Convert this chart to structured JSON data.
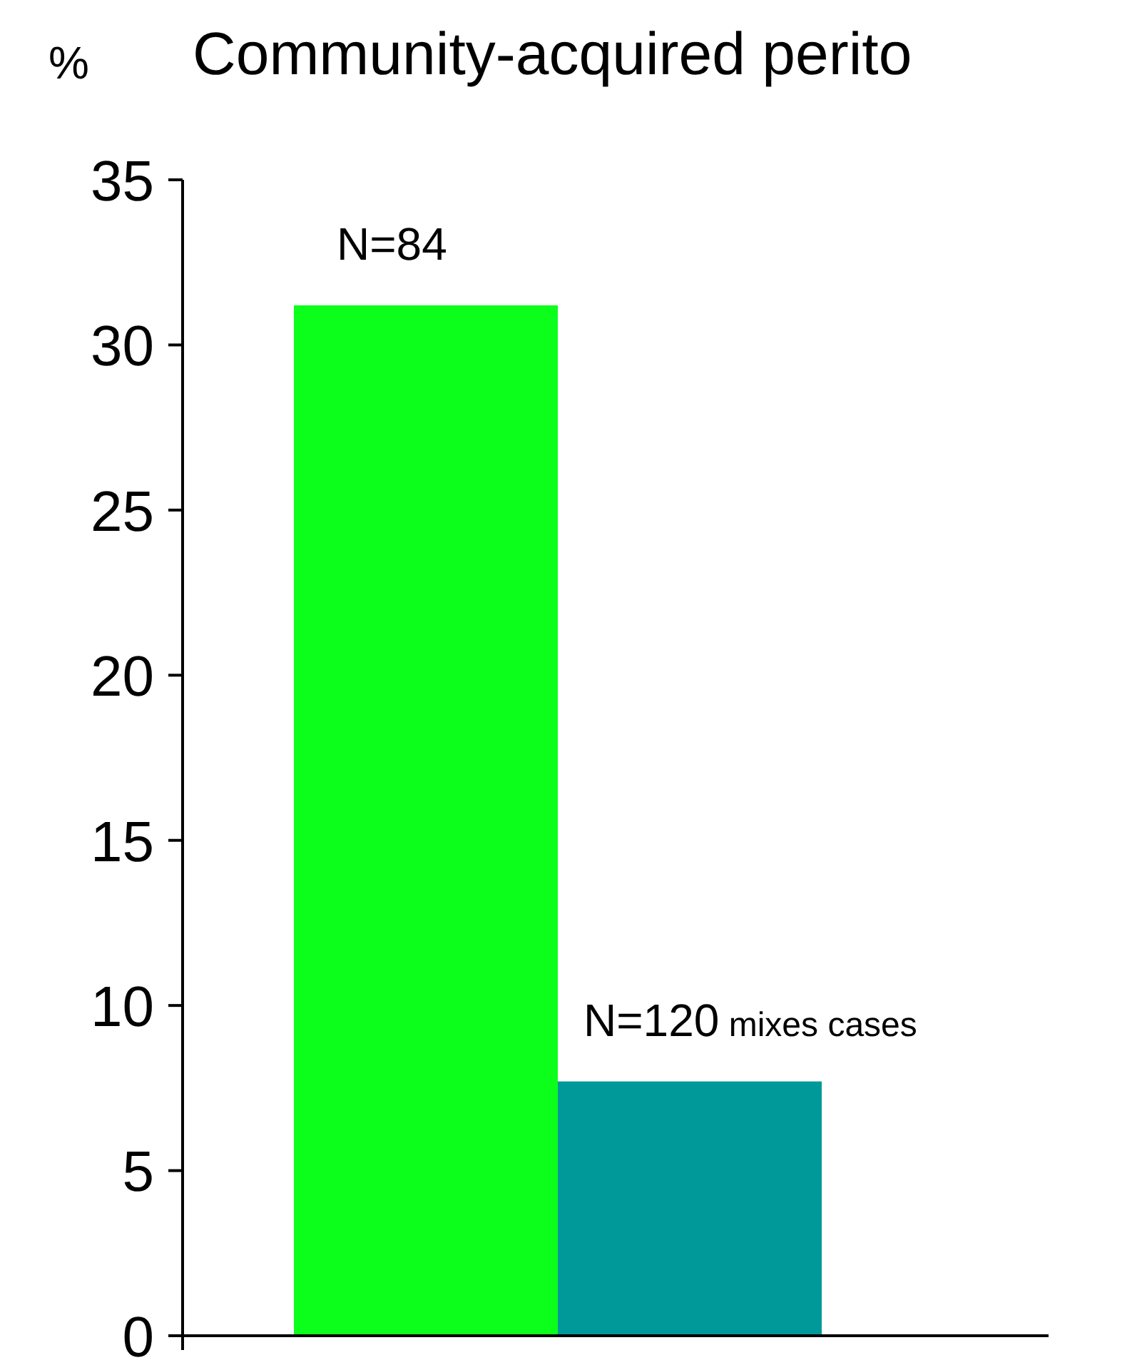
{
  "chart_data": {
    "type": "bar",
    "title": "Community-acquired perito",
    "ylabel": "%",
    "categories": [
      null,
      null
    ],
    "values": [
      31.2,
      7.7
    ],
    "colors": [
      "#0cff1a",
      "#009999"
    ],
    "annotations": [
      "N=84",
      "N=120 mixes cases"
    ],
    "ylim": [
      0,
      35
    ],
    "yticks": [
      0,
      5,
      10,
      15,
      20,
      25,
      30,
      35
    ],
    "grid": false
  }
}
